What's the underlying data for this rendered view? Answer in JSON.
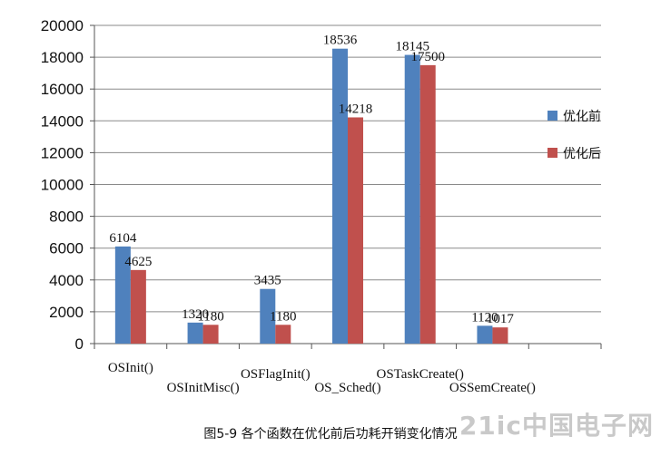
{
  "chart_data": {
    "type": "bar",
    "categories": [
      "OSInit()",
      "OSInitMisc()",
      "OSFlagInit()",
      "OS_Sched()",
      "OSTaskCreate()",
      "OSSemCreate()"
    ],
    "series": [
      {
        "name": "优化前",
        "values": [
          6104,
          1320,
          3435,
          18536,
          18145,
          1120
        ],
        "color": "#4f81bd"
      },
      {
        "name": "优化后",
        "values": [
          4625,
          1180,
          1180,
          14218,
          17500,
          1017
        ],
        "color": "#c0504d"
      }
    ],
    "ylim": [
      0,
      20000
    ],
    "yticks": [
      0,
      2000,
      4000,
      6000,
      8000,
      10000,
      12000,
      14000,
      16000,
      18000,
      20000
    ],
    "grid": true,
    "legend_position": "right"
  },
  "caption": "图5-9  各个函数在优化前后功耗开销变化情况",
  "watermark": "21ic中国电子网"
}
